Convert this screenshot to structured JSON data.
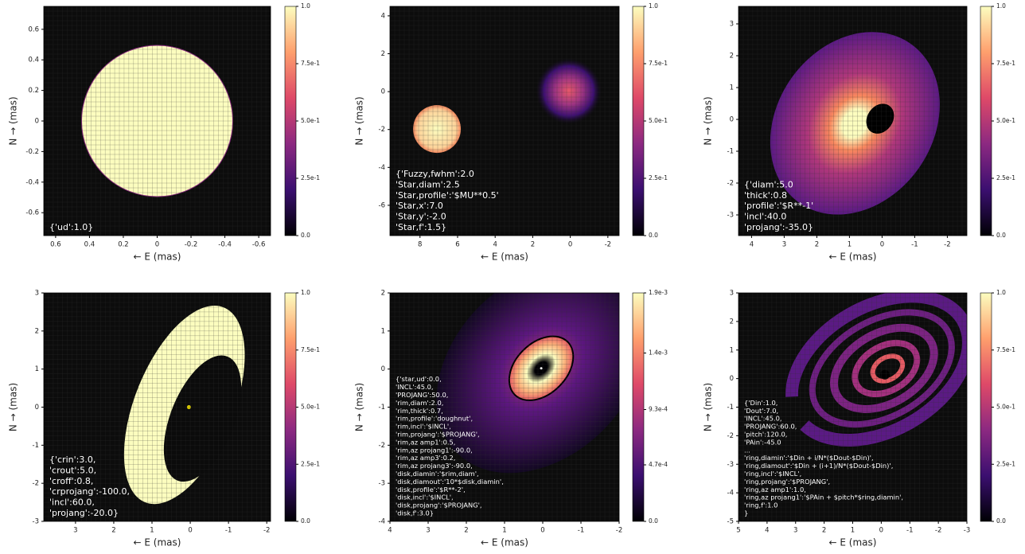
{
  "chart_data": [
    {
      "type": "heatmap",
      "xlabel": "← E (mas)",
      "ylabel": "N → (mas)",
      "xlim": [
        0.67,
        -0.67
      ],
      "ylim": [
        -0.75,
        0.75
      ],
      "xticks": [
        0.6,
        0.4,
        0.2,
        0.0,
        -0.2,
        -0.4,
        -0.6
      ],
      "yticks": [
        0.6,
        0.4,
        0.2,
        0.0,
        -0.2,
        -0.4,
        -0.6
      ],
      "clim": [
        0,
        1
      ],
      "cticks": [
        {
          "value": 0,
          "label": "0.0"
        },
        {
          "value": 0.25,
          "label": "2.5e-1"
        },
        {
          "value": 0.5,
          "label": "5.0e-1"
        },
        {
          "value": 0.75,
          "label": "7.5e-1"
        },
        {
          "value": 1,
          "label": "1.0"
        }
      ],
      "annotation": [
        "{'ud':1.0}"
      ]
    },
    {
      "type": "heatmap",
      "xlabel": "← E (mas)",
      "ylabel": "N → (mas)",
      "xlim": [
        9.6,
        -2.6
      ],
      "ylim": [
        -7.6,
        4.5
      ],
      "xticks": [
        8,
        6,
        4,
        2,
        0,
        -2
      ],
      "yticks": [
        4,
        2,
        0,
        -2,
        -4,
        -6
      ],
      "clim": [
        0,
        1
      ],
      "cticks": [
        {
          "value": 0,
          "label": "0.0"
        },
        {
          "value": 0.25,
          "label": "2.5e-1"
        },
        {
          "value": 0.5,
          "label": "5.0e-1"
        },
        {
          "value": 0.75,
          "label": "7.5e-1"
        },
        {
          "value": 1,
          "label": "1.0"
        }
      ],
      "annotation": [
        "{'Fuzzy,fwhm':2.0",
        "'Star,diam':2.5",
        "'Star,profile':'$MU**0.5'",
        "'Star,x':7.0",
        "'Star,y':-2.0",
        "'Star,f':1.5}"
      ]
    },
    {
      "type": "heatmap",
      "xlabel": "← E (mas)",
      "ylabel": "N → (mas)",
      "xlim": [
        4.4,
        -2.6
      ],
      "ylim": [
        -3.65,
        3.55
      ],
      "xticks": [
        4,
        3,
        2,
        1,
        0,
        -1,
        -2
      ],
      "yticks": [
        3,
        2,
        1,
        0,
        -1,
        -2,
        -3
      ],
      "clim": [
        0,
        1
      ],
      "cticks": [
        {
          "value": 0,
          "label": "0.0"
        },
        {
          "value": 0.25,
          "label": "2.5e-1"
        },
        {
          "value": 0.5,
          "label": "5.0e-1"
        },
        {
          "value": 0.75,
          "label": "7.5e-1"
        },
        {
          "value": 1,
          "label": "1.0"
        }
      ],
      "annotation": [
        "{'diam':5.0",
        "'thick':0.8",
        "'profile':'$R**-1'",
        "'incl':40.0",
        "'projang':-35.0}"
      ]
    },
    {
      "type": "heatmap",
      "xlabel": "← E (mas)",
      "ylabel": "N → (mas)",
      "xlim": [
        3.83,
        -2.1
      ],
      "ylim": [
        -3,
        3
      ],
      "xticks": [
        3,
        2,
        1,
        0,
        -1,
        -2
      ],
      "yticks": [
        3,
        2,
        1,
        0,
        -1,
        -2,
        -3
      ],
      "clim": [
        0,
        1
      ],
      "cticks": [
        {
          "value": 0,
          "label": "0.0"
        },
        {
          "value": 0.25,
          "label": "2.5e-1"
        },
        {
          "value": 0.5,
          "label": "5.0e-1"
        },
        {
          "value": 0.75,
          "label": "7.5e-1"
        },
        {
          "value": 1,
          "label": "1.0"
        }
      ],
      "annotation": [
        "{'crin':3.0,",
        "'crout':5.0,",
        "'croff':0.8,",
        "'crprojang':-100.0,",
        "'incl':60.0,",
        "'projang':-20.0}"
      ]
    },
    {
      "type": "heatmap",
      "xlabel": "← E (mas)",
      "ylabel": "N → (mas)",
      "xlim": [
        4,
        -2
      ],
      "ylim": [
        -4,
        2
      ],
      "xticks": [
        4,
        3,
        2,
        1,
        0,
        -1,
        -2
      ],
      "yticks": [
        2,
        1,
        0,
        -1,
        -2,
        -3,
        -4
      ],
      "clim": [
        0,
        0.0019
      ],
      "cticks": [
        {
          "value": 0,
          "label": "0.0"
        },
        {
          "value": 0.00047,
          "label": "4.7e-4"
        },
        {
          "value": 0.00093,
          "label": "9.3e-4"
        },
        {
          "value": 0.0014,
          "label": "1.4e-3"
        },
        {
          "value": 0.0019,
          "label": "1.9e-3"
        }
      ],
      "annotation": [
        "{'star,ud':0.0,",
        "'INCL':45.0,",
        "'PROJANG':50.0,",
        "'rim,diam':2.0,",
        "'rim,thick':0.7,",
        "'rim,profile':'doughnut',",
        "'rim,incl':'$INCL',",
        "'rim,projang':'$PROJANG',",
        "'rim,az amp1':0.5,",
        "'rim,az projang1':-90.0,",
        "'rim,az amp3':0.2,",
        "'rim,az projang3':-90.0,",
        "'disk,diamin':'$rim,diam',",
        "'disk,diamout':'10*$disk,diamin',",
        "'disk,profile':'$R**-2',",
        "'disk,incl':'$INCL',",
        "'disk,projang':'$PROJANG',",
        "'disk,f':3.0}"
      ]
    },
    {
      "type": "heatmap",
      "xlabel": "← E (mas)",
      "ylabel": "N → (mas)",
      "xlim": [
        5,
        -3
      ],
      "ylim": [
        -5,
        3
      ],
      "xticks": [
        5,
        4,
        3,
        2,
        1,
        0,
        -1,
        -2,
        -3
      ],
      "yticks": [
        3,
        2,
        1,
        0,
        -1,
        -2,
        -3,
        -4,
        -5
      ],
      "clim": [
        0,
        1
      ],
      "cticks": [
        {
          "value": 0,
          "label": "0.0"
        },
        {
          "value": 0.25,
          "label": "2.5e-1"
        },
        {
          "value": 0.5,
          "label": "5.0e-1"
        },
        {
          "value": 0.75,
          "label": "7.5e-1"
        },
        {
          "value": 1,
          "label": "1.0"
        }
      ],
      "annotation": [
        "{'Din':1.0,",
        "'Dout':7.0,",
        "'INCL':45.0,",
        "'PROJANG':60.0,",
        "'pitch':120.0,",
        "'PAin':-45.0",
        "...",
        "'ring,diamin':'$Din + i/N*($Dout-$Din)',",
        "'ring,diamout':'$Din + (i+1)/N*($Dout-$Din)',",
        "'ring,incl':'$INCL',",
        "'ring,projang':'$PROJANG',",
        "'ring,az amp1':1.0,",
        "'ring,az projang1':'$PAin + $pitch*$ring,diamin',",
        "'ring,f':1.0",
        "}"
      ]
    }
  ]
}
